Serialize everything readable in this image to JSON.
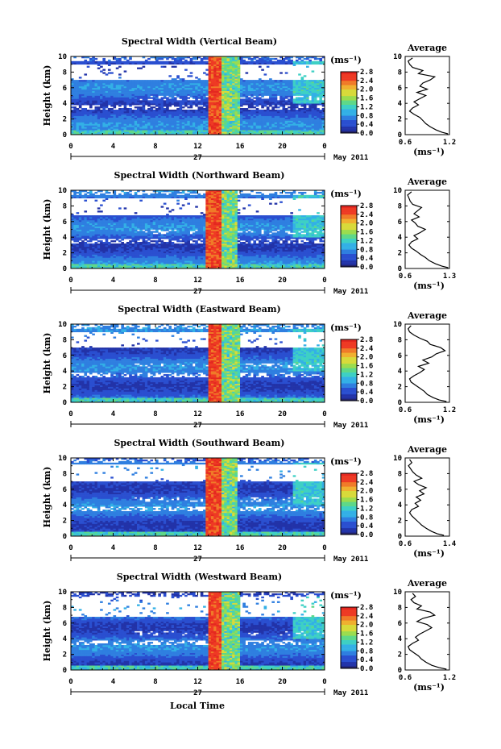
{
  "figure": {
    "x_axis_label": "Local Time",
    "date_month_label": "May 2011",
    "date_day_label": "27",
    "colorbar_unit": "(ms⁻¹)",
    "average_title": "Average",
    "average_xlabel": "(ms⁻¹)",
    "height_label": "Height (km)"
  },
  "chart_data": [
    {
      "type": "heatmap",
      "title": "Spectral Width (Vertical Beam)",
      "xlabel": "Local Time",
      "ylabel": "Height (km)",
      "x_ticks": [
        "0",
        "4",
        "8",
        "12",
        "16",
        "20",
        "0"
      ],
      "y_ticks": [
        "0",
        "2",
        "4",
        "6",
        "8",
        "10"
      ],
      "xlim": [
        0,
        24
      ],
      "ylim": [
        0,
        10
      ],
      "colorbar": {
        "label": "(ms⁻¹)",
        "range": [
          0,
          2.8
        ],
        "ticks": [
          "0.0",
          "0.4",
          "0.8",
          "1.2",
          "1.6",
          "2.0",
          "2.4",
          "2.8"
        ]
      },
      "features": {
        "high_width_band_hours": [
          13.0,
          14.3
        ],
        "gap_height_km": [
          7.0,
          9.0
        ]
      },
      "average_profile": {
        "title": "Average",
        "xlabel": "(ms⁻¹)",
        "xlim": [
          0.6,
          1.2
        ],
        "x_ticks": [
          "0.6",
          "1.2"
        ],
        "y_ticks": [
          "0",
          "2",
          "4",
          "6",
          "8",
          "10"
        ],
        "height": [
          0.1,
          0.3,
          0.6,
          1.0,
          1.4,
          1.8,
          2.2,
          2.6,
          3.0,
          3.4,
          3.8,
          4.2,
          4.6,
          5.0,
          5.4,
          5.8,
          6.2,
          6.6,
          7.0,
          7.4,
          7.8,
          8.2,
          8.6,
          9.0,
          9.4,
          9.8
        ],
        "value": [
          1.18,
          1.1,
          1.02,
          0.94,
          0.88,
          0.84,
          0.8,
          0.72,
          0.66,
          0.7,
          0.78,
          0.72,
          0.8,
          0.88,
          0.76,
          0.9,
          0.8,
          0.84,
          0.94,
          1.0,
          0.78,
          0.84,
          0.7,
          0.66,
          0.64,
          0.7
        ]
      }
    },
    {
      "type": "heatmap",
      "title": "Spectral Width (Northward Beam)",
      "xlabel": "Local Time",
      "ylabel": "Height (km)",
      "x_ticks": [
        "0",
        "4",
        "8",
        "12",
        "16",
        "20",
        "0"
      ],
      "y_ticks": [
        "0",
        "2",
        "4",
        "6",
        "8",
        "10"
      ],
      "xlim": [
        0,
        24
      ],
      "ylim": [
        0,
        10
      ],
      "colorbar": {
        "label": "(ms⁻¹)",
        "range": [
          0,
          2.8
        ],
        "ticks": [
          "0.0",
          "0.4",
          "0.8",
          "1.2",
          "1.6",
          "2.0",
          "2.4",
          "2.8"
        ]
      },
      "features": {
        "high_width_band_hours": [
          12.8,
          14.2
        ],
        "gap_height_km": [
          6.8,
          9.0
        ]
      },
      "average_profile": {
        "title": "Average",
        "xlabel": "(ms⁻¹)",
        "xlim": [
          0.6,
          1.3
        ],
        "x_ticks": [
          "0.6",
          "1.3"
        ],
        "y_ticks": [
          "0",
          "2",
          "4",
          "6",
          "8",
          "10"
        ],
        "height": [
          0.1,
          0.3,
          0.6,
          1.0,
          1.4,
          1.8,
          2.2,
          2.6,
          3.0,
          3.4,
          3.8,
          4.2,
          4.6,
          5.0,
          5.4,
          5.8,
          6.2,
          6.6,
          7.0,
          7.4,
          7.8,
          8.2,
          8.6,
          9.0,
          9.4,
          9.8
        ],
        "value": [
          1.28,
          1.18,
          1.08,
          0.98,
          0.92,
          0.84,
          0.78,
          0.7,
          0.66,
          0.7,
          0.8,
          0.74,
          0.84,
          0.92,
          0.8,
          0.76,
          0.7,
          0.82,
          0.74,
          0.8,
          0.86,
          0.72,
          0.68,
          0.66,
          0.64,
          0.7
        ]
      }
    },
    {
      "type": "heatmap",
      "title": "Spectral Width (Eastward Beam)",
      "xlabel": "Local Time",
      "ylabel": "Height (km)",
      "x_ticks": [
        "0",
        "4",
        "8",
        "12",
        "16",
        "20",
        "0"
      ],
      "y_ticks": [
        "0",
        "2",
        "4",
        "6",
        "8",
        "10"
      ],
      "xlim": [
        0,
        24
      ],
      "ylim": [
        0,
        10
      ],
      "colorbar": {
        "label": "(ms⁻¹)",
        "range": [
          0,
          2.8
        ],
        "ticks": [
          "0.0",
          "0.4",
          "0.8",
          "1.2",
          "1.6",
          "2.0",
          "2.4",
          "2.8"
        ]
      },
      "features": {
        "high_width_band_hours": [
          12.9,
          14.3
        ],
        "gap_height_km": [
          7.0,
          9.0
        ]
      },
      "average_profile": {
        "title": "Average",
        "xlabel": "(ms⁻¹)",
        "xlim": [
          0.6,
          1.2
        ],
        "x_ticks": [
          "0.6",
          "1.2"
        ],
        "y_ticks": [
          "0",
          "2",
          "4",
          "6",
          "8",
          "10"
        ],
        "height": [
          0.1,
          0.3,
          0.6,
          1.0,
          1.4,
          1.8,
          2.2,
          2.6,
          3.0,
          3.4,
          3.8,
          4.2,
          4.6,
          5.0,
          5.4,
          5.8,
          6.2,
          6.6,
          7.0,
          7.4,
          7.8,
          8.2,
          8.6,
          9.0,
          9.4,
          9.8
        ],
        "value": [
          1.16,
          1.06,
          0.98,
          0.9,
          0.86,
          0.8,
          0.74,
          0.68,
          0.66,
          0.72,
          0.8,
          0.86,
          0.78,
          0.92,
          0.84,
          0.96,
          1.02,
          1.14,
          1.08,
          0.94,
          0.9,
          0.8,
          0.72,
          0.66,
          0.64,
          0.68
        ]
      }
    },
    {
      "type": "heatmap",
      "title": "Spectral Width (Southward Beam)",
      "xlabel": "Local Time",
      "ylabel": "Height (km)",
      "x_ticks": [
        "0",
        "4",
        "8",
        "12",
        "16",
        "20",
        "0"
      ],
      "y_ticks": [
        "0",
        "2",
        "4",
        "6",
        "8",
        "10"
      ],
      "xlim": [
        0,
        24
      ],
      "ylim": [
        0,
        10
      ],
      "colorbar": {
        "label": "(ms⁻¹)",
        "range": [
          0,
          2.8
        ],
        "ticks": [
          "0.0",
          "0.4",
          "0.8",
          "1.2",
          "1.6",
          "2.0",
          "2.4",
          "2.8"
        ]
      },
      "features": {
        "high_width_band_hours": [
          12.8,
          14.2
        ],
        "gap_height_km": [
          7.0,
          9.2
        ]
      },
      "average_profile": {
        "title": "Average",
        "xlabel": "(ms⁻¹)",
        "xlim": [
          0.6,
          1.4
        ],
        "x_ticks": [
          "0.6",
          "1.4"
        ],
        "y_ticks": [
          "0",
          "2",
          "4",
          "6",
          "8",
          "10"
        ],
        "height": [
          0.1,
          0.3,
          0.6,
          1.0,
          1.4,
          1.8,
          2.2,
          2.6,
          3.0,
          3.4,
          3.8,
          4.2,
          4.6,
          5.0,
          5.4,
          5.8,
          6.2,
          6.6,
          7.0,
          7.4,
          7.8,
          8.2,
          8.6,
          9.0,
          9.4,
          9.8
        ],
        "value": [
          1.3,
          1.18,
          1.08,
          0.98,
          0.9,
          0.84,
          0.78,
          0.72,
          0.68,
          0.72,
          0.84,
          0.78,
          0.88,
          0.8,
          0.94,
          0.86,
          0.98,
          0.84,
          0.76,
          0.9,
          0.8,
          0.74,
          0.7,
          0.66,
          0.72,
          0.68
        ]
      }
    },
    {
      "type": "heatmap",
      "title": "Spectral Width (Westward Beam)",
      "xlabel": "Local Time",
      "ylabel": "Height (km)",
      "x_ticks": [
        "0",
        "4",
        "8",
        "12",
        "16",
        "20",
        "0"
      ],
      "y_ticks": [
        "0",
        "2",
        "4",
        "6",
        "8",
        "10"
      ],
      "xlim": [
        0,
        24
      ],
      "ylim": [
        0,
        10
      ],
      "colorbar": {
        "label": "(ms⁻¹)",
        "range": [
          0,
          2.8
        ],
        "ticks": [
          "0.0",
          "0.4",
          "0.8",
          "1.2",
          "1.6",
          "2.0",
          "2.4",
          "2.8"
        ]
      },
      "features": {
        "high_width_band_hours": [
          12.9,
          14.3
        ],
        "gap_height_km": [
          6.8,
          9.4
        ]
      },
      "average_profile": {
        "title": "Average",
        "xlabel": "(ms⁻¹)",
        "xlim": [
          0.6,
          1.2
        ],
        "x_ticks": [
          "0.6",
          "1.2"
        ],
        "y_ticks": [
          "0",
          "2",
          "4",
          "6",
          "8",
          "10"
        ],
        "height": [
          0.1,
          0.3,
          0.6,
          1.0,
          1.4,
          1.8,
          2.2,
          2.6,
          3.0,
          3.4,
          3.8,
          4.2,
          4.6,
          5.0,
          5.4,
          5.8,
          6.2,
          6.6,
          7.0,
          7.4,
          7.8,
          8.2,
          8.6,
          9.0,
          9.4,
          9.8
        ],
        "value": [
          1.16,
          1.06,
          0.96,
          0.88,
          0.82,
          0.78,
          0.72,
          0.66,
          0.64,
          0.7,
          0.78,
          0.74,
          0.8,
          0.88,
          0.96,
          0.9,
          0.76,
          0.84,
          1.0,
          0.94,
          0.76,
          0.82,
          0.72,
          0.68,
          0.74,
          0.7
        ]
      }
    }
  ]
}
